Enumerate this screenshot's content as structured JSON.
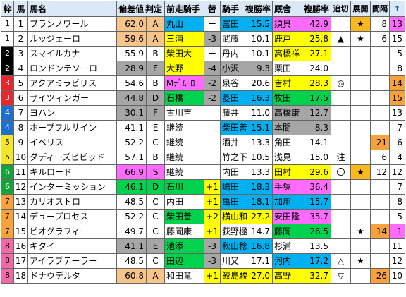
{
  "headers": {
    "waku": "枠",
    "uma": "馬",
    "name": "馬名",
    "hensa": "偏差値",
    "hantei": "判定",
    "prev_jockey": "前走騎手",
    "change": "替",
    "jockey": "騎手",
    "jockey_rate": "複勝率",
    "trainer": "厩舎",
    "trainer_rate": "複勝率",
    "tsuikiri": "追切",
    "tenkai": "展開",
    "kankaku": "間隔",
    "sort_arrow": "↑"
  },
  "colors": {
    "waku": [
      "#ffffff",
      "#000000",
      "#e8262b",
      "#1f6fd0",
      "#f6e629",
      "#17a33b",
      "#f7a23a",
      "#f06aa8"
    ],
    "waku_text": [
      "#000000",
      "#ffffff",
      "#ffffff",
      "#ffffff",
      "#000000",
      "#ffffff",
      "#000000",
      "#000000"
    ],
    "gray": "#a6a6a6",
    "hensa_orange": "#f7c48a",
    "yellow": "#ffff00",
    "magenta": "#ff6bff",
    "cyan": "#00b0f0",
    "green": "#00d24d",
    "kankaku_orange": "#f7a23a",
    "plus": "#ffff00",
    "minus": "#a6a6a6",
    "star_bg": "#ffb81c"
  },
  "rows": [
    {
      "waku": "1",
      "uma": "1",
      "name": "ブランノワール",
      "hensa": "62.0",
      "hantei": "A",
      "hensa_bg": "#f7c48a",
      "prev": "丸山",
      "prev_bg": "#00b0f0",
      "change": "ー",
      "change_bg": "#ffffff",
      "jockey": "富田",
      "jockey_rate": "15.5",
      "jockey_bg": "#00b0f0",
      "trainer": "須貝",
      "trainer_rate": "42.9",
      "trainer_bg": "#ff6bff",
      "tsuikiri": "",
      "tenkai": "★",
      "tenkai_bg": "#ffb81c",
      "kankaku": "8",
      "kankaku_bg": "#ffffff",
      "last": "13",
      "last_bg": "#ff6bff"
    },
    {
      "waku": "1",
      "uma": "2",
      "name": "ルッジェーロ",
      "hensa": "59.6",
      "hantei": "A",
      "hensa_bg": "#f7c48a",
      "prev": "三浦",
      "prev_bg": "#ffff00",
      "change": "-3",
      "change_bg": "#a6a6a6",
      "jockey": "武藤",
      "jockey_rate": "10.1",
      "jockey_bg": "#ffffff",
      "trainer": "鹿戸",
      "trainer_rate": "25.8",
      "trainer_bg": "#ffff00",
      "tsuikiri": "▲",
      "tenkai": "★",
      "tenkai_bg": "#ffffff",
      "kankaku": "6",
      "kankaku_bg": "#ffffff",
      "last": "15",
      "last_bg": "#ffffff"
    },
    {
      "waku": "2",
      "uma": "3",
      "name": "スマイルカナ",
      "hensa": "55.9",
      "hantei": "B",
      "hensa_bg": "#ffffff",
      "prev": "柴田大",
      "prev_bg": "#ffff00",
      "change": "ー",
      "change_bg": "#ffffff",
      "jockey": "丹内",
      "jockey_rate": "10.1",
      "jockey_bg": "#ffffff",
      "trainer": "高橋祥",
      "trainer_rate": "27.1",
      "trainer_bg": "#ffff00",
      "tsuikiri": "",
      "tenkai": "",
      "tenkai_bg": "#ffffff",
      "kankaku": "",
      "kankaku_bg": "#ffffff",
      "last": "5",
      "last_bg": "#ffffff"
    },
    {
      "waku": "2",
      "uma": "4",
      "name": "ロンドンテソーロ",
      "hensa": "28.9",
      "hantei": "F",
      "hensa_bg": "#a6a6a6",
      "prev": "大野",
      "prev_bg": "#ffff00",
      "change": "-4",
      "change_bg": "#a6a6a6",
      "jockey": "小沢",
      "jockey_rate": "9.3",
      "jockey_bg": "#a6a6a6",
      "trainer": "栗田",
      "trainer_rate": "24.0",
      "trainer_bg": "#ffffff",
      "tsuikiri": "",
      "tenkai": "",
      "tenkai_bg": "#ffffff",
      "kankaku": "",
      "kankaku_bg": "#ffffff",
      "last": "8",
      "last_bg": "#ffffff"
    },
    {
      "waku": "3",
      "uma": "5",
      "name": "アクアミラビリス",
      "hensa": "54.6",
      "hantei": "B",
      "hensa_bg": "#ffffff",
      "prev": "Mﾃﾞﾑｰﾛ",
      "prev_bg": "#ff6bff",
      "change": "-2",
      "change_bg": "#a6a6a6",
      "jockey": "泉谷",
      "jockey_rate": "20.6",
      "jockey_bg": "#ffffff",
      "trainer": "吉村",
      "trainer_rate": "28.3",
      "trainer_bg": "#ffff00",
      "tsuikiri": "◎",
      "tenkai": "",
      "tenkai_bg": "#ffffff",
      "kankaku": "",
      "kankaku_bg": "#ffffff",
      "last": "14",
      "last_bg": "#f7a23a"
    },
    {
      "waku": "3",
      "uma": "6",
      "name": "ザイツィンガー",
      "hensa": "44.8",
      "hantei": "D",
      "hensa_bg": "#a6a6a6",
      "prev": "石橋",
      "prev_bg": "#00d24d",
      "change": "-2",
      "change_bg": "#a6a6a6",
      "jockey": "菱田",
      "jockey_rate": "16.3",
      "jockey_bg": "#00b0f0",
      "trainer": "牧田",
      "trainer_rate": "17.5",
      "trainer_bg": "#00d24d",
      "tsuikiri": "",
      "tenkai": "",
      "tenkai_bg": "#ffffff",
      "kankaku": "",
      "kankaku_bg": "#ffffff",
      "last": "15",
      "last_bg": "#f7a23a"
    },
    {
      "waku": "4",
      "uma": "7",
      "name": "ヨハン",
      "hensa": "30.1",
      "hantei": "F",
      "hensa_bg": "#a6a6a6",
      "prev": "古川吉",
      "prev_bg": "#ffffff",
      "change": "",
      "change_bg": "#ffffff",
      "jockey": "藤井",
      "jockey_rate": "11.0",
      "jockey_bg": "#ffffff",
      "trainer": "高橋康",
      "trainer_rate": "12.7",
      "trainer_bg": "#a6a6a6",
      "tsuikiri": "",
      "tenkai": "",
      "tenkai_bg": "#ffffff",
      "kankaku": "",
      "kankaku_bg": "#ffffff",
      "last": "13",
      "last_bg": "#ffffff"
    },
    {
      "waku": "4",
      "uma": "8",
      "name": "ホープフルサイン",
      "hensa": "41.1",
      "hantei": "E",
      "hensa_bg": "#ffffff",
      "prev": "継続",
      "prev_bg": "#ffffff",
      "change": "",
      "change_bg": "#ffffff",
      "jockey": "柴田善",
      "jockey_rate": "15.1",
      "jockey_bg": "#00b0f0",
      "trainer": "本間",
      "trainer_rate": "8.3",
      "trainer_bg": "#a6a6a6",
      "tsuikiri": "",
      "tenkai": "",
      "tenkai_bg": "#ffffff",
      "kankaku": "",
      "kankaku_bg": "#ffffff",
      "last": "7",
      "last_bg": "#ffffff"
    },
    {
      "waku": "5",
      "uma": "9",
      "name": "イベリス",
      "hensa": "52.2",
      "hantei": "C",
      "hensa_bg": "#ffffff",
      "prev": "継続",
      "prev_bg": "#ffffff",
      "change": "",
      "change_bg": "#ffffff",
      "jockey": "酒井",
      "jockey_rate": "13.3",
      "jockey_bg": "#ffffff",
      "trainer": "角田",
      "trainer_rate": "14.1",
      "trainer_bg": "#ffffff",
      "tsuikiri": "",
      "tenkai": "",
      "tenkai_bg": "#ffffff",
      "kankaku": "21",
      "kankaku_bg": "#f7a23a",
      "last": "6",
      "last_bg": "#ffffff"
    },
    {
      "waku": "5",
      "uma": "10",
      "name": "ダディーズビビッド",
      "hensa": "57.1",
      "hantei": "B",
      "hensa_bg": "#ffffff",
      "prev": "継続",
      "prev_bg": "#ffffff",
      "change": "",
      "change_bg": "#ffffff",
      "jockey": "竹之下",
      "jockey_rate": "10.5",
      "jockey_bg": "#ffffff",
      "trainer": "浅見",
      "trainer_rate": "15.0",
      "trainer_bg": "#ffffff",
      "tsuikiri": "注",
      "tenkai": "",
      "tenkai_bg": "#ffffff",
      "kankaku": "6",
      "kankaku_bg": "#ffffff",
      "last": "4",
      "last_bg": "#ffffff"
    },
    {
      "waku": "6",
      "uma": "11",
      "name": "キルロード",
      "hensa": "66.9",
      "hantei": "S",
      "hensa_bg": "#ff6bff",
      "prev": "継続",
      "prev_bg": "#ffffff",
      "change": "",
      "change_bg": "#ffffff",
      "jockey": "内田",
      "jockey_rate": "13.3",
      "jockey_bg": "#ffffff",
      "trainer": "田村",
      "trainer_rate": "29.6",
      "trainer_bg": "#ffff00",
      "tsuikiri": "〇",
      "tenkai": "★",
      "tenkai_bg": "#ffb81c",
      "kankaku": "12",
      "kankaku_bg": "#ffffff",
      "last": "12",
      "last_bg": "#ffffff"
    },
    {
      "waku": "6",
      "uma": "12",
      "name": "インターミッション",
      "hensa": "46.1",
      "hantei": "D",
      "hensa_bg": "#00d24d",
      "prev": "石川",
      "prev_bg": "#00d24d",
      "change": "+1",
      "change_bg": "#ffff00",
      "jockey": "嶋田",
      "jockey_rate": "18.3",
      "jockey_bg": "#00b0f0",
      "trainer": "手塚",
      "trainer_rate": "36.4",
      "trainer_bg": "#ff6bff",
      "tsuikiri": "",
      "tenkai": "",
      "tenkai_bg": "#ffffff",
      "kankaku": "",
      "kankaku_bg": "#ffffff",
      "last": "7",
      "last_bg": "#ffffff"
    },
    {
      "waku": "7",
      "uma": "13",
      "name": "カリオストロ",
      "hensa": "48.5",
      "hantei": "C",
      "hensa_bg": "#ffffff",
      "prev": "内田",
      "prev_bg": "#ffffff",
      "change": "+1",
      "change_bg": "#ffff00",
      "jockey": "亀田",
      "jockey_rate": "18.1",
      "jockey_bg": "#00b0f0",
      "trainer": "加用",
      "trainer_rate": "15.7",
      "trainer_bg": "#00b0f0",
      "tsuikiri": "",
      "tenkai": "",
      "tenkai_bg": "#ffffff",
      "kankaku": "",
      "kankaku_bg": "#ffffff",
      "last": "8",
      "last_bg": "#ffffff"
    },
    {
      "waku": "7",
      "uma": "14",
      "name": "デュープロセス",
      "hensa": "52.2",
      "hantei": "C",
      "hensa_bg": "#ffffff",
      "prev": "柴田善",
      "prev_bg": "#00d24d",
      "change": "+2",
      "change_bg": "#ffff00",
      "jockey": "横山和",
      "jockey_rate": "27.2",
      "jockey_bg": "#ffff00",
      "trainer": "安田隆",
      "trainer_rate": "35.7",
      "trainer_bg": "#ff6bff",
      "tsuikiri": "",
      "tenkai": "",
      "tenkai_bg": "#ffffff",
      "kankaku": "",
      "kankaku_bg": "#ffffff",
      "last": "5",
      "last_bg": "#ffffff"
    },
    {
      "waku": "7",
      "uma": "15",
      "name": "ビオグラフィー",
      "hensa": "49.7",
      "hantei": "C",
      "hensa_bg": "#ffffff",
      "prev": "藤岡康",
      "prev_bg": "#ffffff",
      "change": "+1",
      "change_bg": "#ffff00",
      "jockey": "荻野極",
      "jockey_rate": "14.7",
      "jockey_bg": "#ffffff",
      "trainer": "藤岡",
      "trainer_rate": "26.5",
      "trainer_bg": "#00d24d",
      "tsuikiri": "",
      "tenkai": "★",
      "tenkai_bg": "#ffffff",
      "kankaku": "14",
      "kankaku_bg": "#f7a23a",
      "last": "1",
      "last_bg": "#ff6bff"
    },
    {
      "waku": "8",
      "uma": "16",
      "name": "キタイ",
      "hensa": "41.1",
      "hantei": "E",
      "hensa_bg": "#a6a6a6",
      "prev": "池添",
      "prev_bg": "#00d24d",
      "change": "-3",
      "change_bg": "#a6a6a6",
      "jockey": "秋山稔",
      "jockey_rate": "16.8",
      "jockey_bg": "#00b0f0",
      "trainer": "杉浦",
      "trainer_rate": "13.5",
      "trainer_bg": "#ffffff",
      "tsuikiri": "",
      "tenkai": "",
      "tenkai_bg": "#ffffff",
      "kankaku": "",
      "kankaku_bg": "#ffffff",
      "last": "11",
      "last_bg": "#ffffff"
    },
    {
      "waku": "8",
      "uma": "17",
      "name": "アイラブテーラー",
      "hensa": "48.5",
      "hantei": "C",
      "hensa_bg": "#ffffff",
      "prev": "田辺",
      "prev_bg": "#00d24d",
      "change": "-3",
      "change_bg": "#a6a6a6",
      "jockey": "川又",
      "jockey_rate": "17.1",
      "jockey_bg": "#ffffff",
      "trainer": "河内",
      "trainer_rate": "17.2",
      "trainer_bg": "#00b0f0",
      "tsuikiri": "△",
      "tenkai": "★",
      "tenkai_bg": "#ffffff",
      "kankaku": "",
      "kankaku_bg": "#ffffff",
      "last": "12",
      "last_bg": "#ffffff"
    },
    {
      "waku": "8",
      "uma": "18",
      "name": "ドナウデルタ",
      "hensa": "60.8",
      "hantei": "A",
      "hensa_bg": "#f7c48a",
      "prev": "和田竜",
      "prev_bg": "#ffffff",
      "change": "+1",
      "change_bg": "#ffff00",
      "jockey": "鮫島駿",
      "jockey_rate": "27.0",
      "jockey_bg": "#ffff00",
      "trainer": "高野",
      "trainer_rate": "32.7",
      "trainer_bg": "#ffff00",
      "tsuikiri": "▽",
      "tenkai": "",
      "tenkai_bg": "#ffffff",
      "kankaku": "26",
      "kankaku_bg": "#f7a23a",
      "last": "10",
      "last_bg": "#ffffff"
    }
  ]
}
